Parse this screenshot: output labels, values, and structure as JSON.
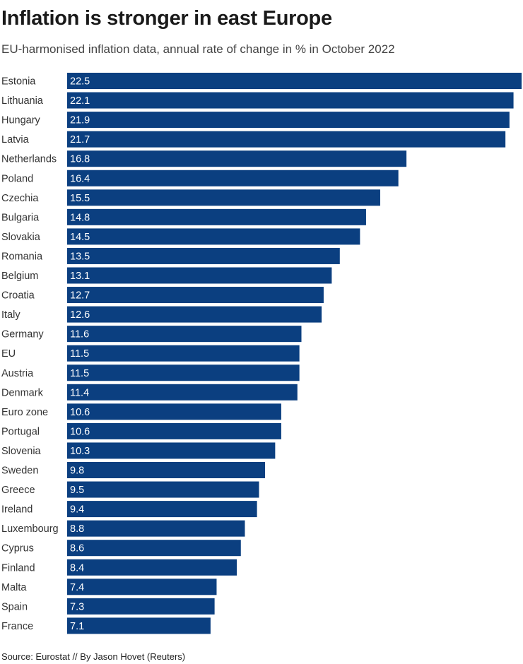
{
  "chart_data": {
    "type": "bar",
    "orientation": "horizontal",
    "title": "Inflation is stronger in east Europe",
    "subtitle": "EU-harmonised inflation data, annual rate of change in % in October 2022",
    "source": "Source: Eurostat // By Jason Hovet (Reuters)",
    "categories": [
      "Estonia",
      "Lithuania",
      "Hungary",
      "Latvia",
      "Netherlands",
      "Poland",
      "Czechia",
      "Bulgaria",
      "Slovakia",
      "Romania",
      "Belgium",
      "Croatia",
      "Italy",
      "Germany",
      "EU",
      "Austria",
      "Denmark",
      "Euro zone",
      "Portugal",
      "Slovenia",
      "Sweden",
      "Greece",
      "Ireland",
      "Luxembourg",
      "Cyprus",
      "Finland",
      "Malta",
      "Spain",
      "France"
    ],
    "values": [
      22.5,
      22.1,
      21.9,
      21.7,
      16.8,
      16.4,
      15.5,
      14.8,
      14.5,
      13.5,
      13.1,
      12.7,
      12.6,
      11.6,
      11.5,
      11.5,
      11.4,
      10.6,
      10.6,
      10.3,
      9.8,
      9.5,
      9.4,
      8.8,
      8.6,
      8.4,
      7.4,
      7.3,
      7.1
    ],
    "xlim": [
      0,
      22.5
    ],
    "grid": false,
    "bar_color": "#0b3f80",
    "label_color": "#ffffff"
  }
}
